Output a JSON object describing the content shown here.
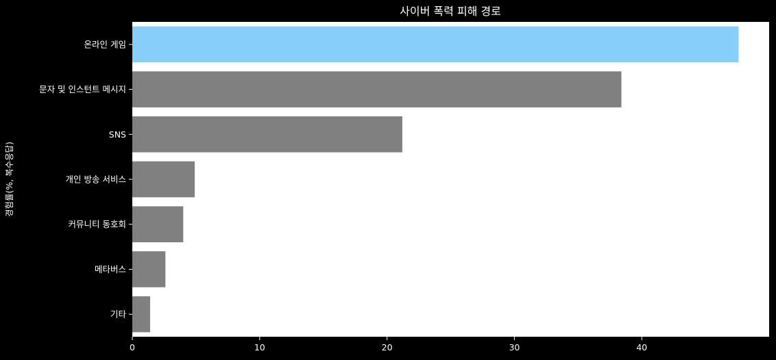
{
  "chart_data": {
    "type": "bar",
    "orientation": "horizontal",
    "title": "사이버 폭력 피해 경로",
    "xlabel": "",
    "ylabel": "경험률(%, 복수응답)",
    "categories": [
      "온라인 게임",
      "문자 및 인스턴트 메시지",
      "SNS",
      "개인 방송 서비스",
      "커뮤니티 동호회",
      "메타버스",
      "기타"
    ],
    "values": [
      47.6,
      38.4,
      21.2,
      4.9,
      4.0,
      2.6,
      1.4
    ],
    "xlim": [
      0,
      50
    ],
    "xticks": [
      0,
      10,
      20,
      30,
      40
    ],
    "grid": false,
    "colors": {
      "highlight": "#87CEFA",
      "default": "#808080",
      "plot_background": "#ffffff",
      "figure_background": "#000000",
      "text": "#ffffff"
    },
    "highlight_index": 0
  }
}
